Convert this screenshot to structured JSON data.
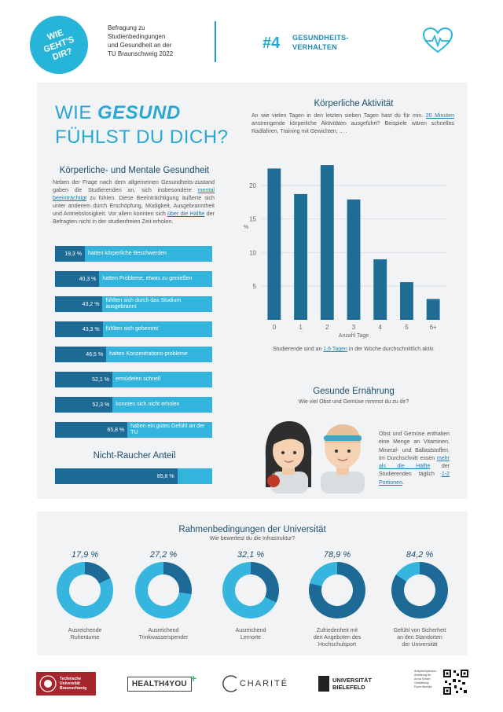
{
  "header": {
    "logo_text_1": "WIE",
    "logo_text_2": "GEHT'S",
    "logo_text_3": "DIR?",
    "subtitle_1": "Befragung zu",
    "subtitle_2": "Studienbedingungen",
    "subtitle_3": "und Gesundheit an der",
    "subtitle_4": "TU Braunschweig 2022",
    "number": "#4",
    "topic_1": "GESUNDHEITS-",
    "topic_2": "VERHALTEN",
    "icon": "heart-pulse-icon"
  },
  "title": {
    "line1_pre": "WIE ",
    "line1_em": "GESUND",
    "line2": "FÜHLST DU DICH?"
  },
  "mental": {
    "heading": "Körperliche- und Mentale Gesundheit",
    "para_1": "Neben der Frage nach dem allgemeinen Gesundheits-zustand gaben die Studierenden an, sich insbesondere",
    "para_hl_1": "mental beeinträchtigt",
    "para_2": " zu fühlen. Diese Beeinträchtigung äußerte sich unter anderem durch Erschöpfung, Müdigkeit, Ausgebranntheit und Antriebslosigkeit. Vor allem konnten sich ",
    "para_hl_2": "über die Hälfte",
    "para_3": " der Befragten nicht in der studienfreien Zeit erholen.",
    "bars": [
      {
        "pct": "19,3 %",
        "fill": 0.193,
        "label": "hatten körperliche Beschwerden"
      },
      {
        "pct": "40,3 %",
        "fill": 0.403,
        "label": "hatten Probleme, etwas zu genießen"
      },
      {
        "pct": "43,2 %",
        "fill": 0.432,
        "label": "fühlten sich durch das Studium ausgebrannt"
      },
      {
        "pct": "43,3 %",
        "fill": 0.433,
        "label": "fühlten sich gehemmt"
      },
      {
        "pct": "46,5 %",
        "fill": 0.465,
        "label": "hatten Konzentrations-probleme"
      },
      {
        "pct": "52,1 %",
        "fill": 0.521,
        "label": "ermüdeten schnell"
      },
      {
        "pct": "52,3 %",
        "fill": 0.523,
        "label": "konnten sich nicht erholen"
      },
      {
        "pct": "65,8 %",
        "fill": 0.658,
        "label": "haben ein gutes Gefühl an der TU"
      }
    ],
    "smoker_heading": "Nicht-Raucher Anteil",
    "smoker_pct": "85,8 %",
    "smoker_fill": 0.858
  },
  "activity": {
    "heading": "Körperliche Aktivität",
    "q_1": "An wie vielen Tagen in den letzten sieben Tagen hast du für min. ",
    "q_hl": "20 Minuten",
    "q_2": " anstrengende körperliche Aktivitäten ausgeführt? Beispiele wären schnelles Radfahren, Training mit Gewichten, ... .",
    "note_1": "Studierende sind an ",
    "note_hl": "1,6 Tagen",
    "note_2": " in der Woche durchschnittlich aktiv.",
    "bar_color": "#1f6d95"
  },
  "chart_data": {
    "type": "bar",
    "categories": [
      "0",
      "1",
      "2",
      "3",
      "4",
      "5",
      "6+"
    ],
    "values": [
      22.5,
      18.7,
      23.0,
      17.9,
      9.0,
      5.6,
      3.1
    ],
    "xlabel": "Anzahl Tage",
    "ylabel": "%",
    "ylim": [
      0,
      25
    ],
    "yticks": [
      "5",
      "10",
      "15",
      "20"
    ],
    "grid": true
  },
  "nutrition": {
    "heading": "Gesunde Ernährung",
    "question": "Wie viel Obst und Gemüse nimmst du zu dir?",
    "text_1": "Obst und Gemüse enthalten eine Menge an Vitaminen, Mineral- und Ballaststoffen. Im Durchschnitt essen ",
    "text_hl_1": "mehr als die Hälfte",
    "text_2": " der Studierenden täglich ",
    "text_hl_2": "1-2 Portionen",
    "text_3": "."
  },
  "university": {
    "heading": "Rahmenbedingungen der Universität",
    "question": "Wie bewertest du die Infrastruktur?",
    "items": [
      {
        "pct": "17,9 %",
        "value": 0.179,
        "label_1": "Ausreichende",
        "label_2": "Ruheräume",
        "label_3": ""
      },
      {
        "pct": "27,2 %",
        "value": 0.272,
        "label_1": "Ausreichend",
        "label_2": "Trinkwasserspender",
        "label_3": ""
      },
      {
        "pct": "32,1 %",
        "value": 0.321,
        "label_1": "Ausreichend",
        "label_2": "Lernorte",
        "label_3": ""
      },
      {
        "pct": "78,9 %",
        "value": 0.789,
        "label_1": "Zufriedenheit mit",
        "label_2": "den Angeboten des",
        "label_3": "Hochschulsport"
      },
      {
        "pct": "84,2 %",
        "value": 0.842,
        "label_1": "Gefühl von Sicherheit",
        "label_2": "an den Standorten",
        "label_3": "der Universität"
      }
    ]
  },
  "footer": {
    "tu_1": "Technische",
    "tu_2": "Universität",
    "tu_3": "Braunschweig",
    "health": "HEALTH4YOU",
    "charite": "CHARITÉ",
    "bielefeld_1": "UNIVERSITÄT",
    "bielefeld_2": "BIELEFELD",
    "contact_1": "Ansprechperson:",
    "contact_2": "Abteilung für",
    "contact_3": "Anna Seidel",
    "contact_4": "Gestaltung:",
    "contact_5": "Ryan Abdulla"
  },
  "colors": {
    "accent": "#26b5d9",
    "dark": "#1d6a96",
    "panel": "#f1f3f5"
  }
}
